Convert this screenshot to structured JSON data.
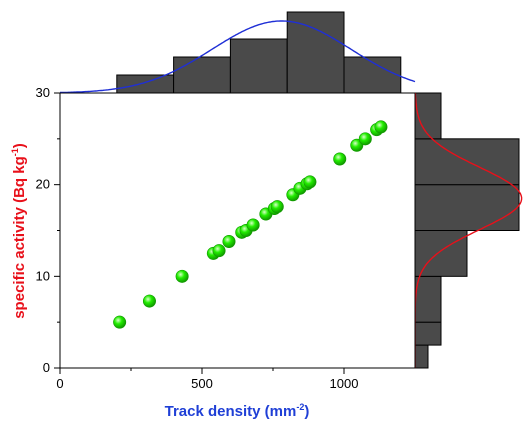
{
  "colors": {
    "point": "#22ee00",
    "point_highlight": "#d8ffc8",
    "point_edge": "#119900",
    "bar_fill": "#4a4a4a",
    "bar_edge": "#000000",
    "x_curve": "#1f2fd6",
    "y_curve": "#e8101a",
    "x_title": "#1f3fd6",
    "y_title": "#e8101a"
  },
  "chart_data": {
    "type": "scatter",
    "xlabel": {
      "main": "Track density (mm",
      "sup": "-2",
      "tail": ")"
    },
    "ylabel": {
      "main": "specific activity (Bq kg",
      "sup": "-1",
      "tail": ")"
    },
    "xlim": [
      0,
      1250
    ],
    "ylim": [
      0,
      30
    ],
    "xticks": [
      0,
      500,
      1000
    ],
    "xtick_labels": [
      "0",
      "500",
      "1000"
    ],
    "yticks": [
      0,
      10,
      20,
      30
    ],
    "ytick_labels": [
      "0",
      "10",
      "20",
      "30"
    ],
    "grid": false,
    "points": [
      [
        210,
        5.0
      ],
      [
        315,
        7.3
      ],
      [
        430,
        10.0
      ],
      [
        540,
        12.5
      ],
      [
        560,
        12.8
      ],
      [
        595,
        13.8
      ],
      [
        640,
        14.8
      ],
      [
        655,
        15.0
      ],
      [
        680,
        15.6
      ],
      [
        725,
        16.8
      ],
      [
        755,
        17.4
      ],
      [
        765,
        17.6
      ],
      [
        820,
        18.9
      ],
      [
        845,
        19.6
      ],
      [
        870,
        20.1
      ],
      [
        880,
        20.3
      ],
      [
        985,
        22.8
      ],
      [
        1045,
        24.3
      ],
      [
        1075,
        25.0
      ],
      [
        1115,
        26.0
      ],
      [
        1130,
        26.3
      ]
    ],
    "x_histogram": {
      "bins": [
        [
          200,
          400
        ],
        [
          400,
          600
        ],
        [
          600,
          800
        ],
        [
          800,
          1000
        ],
        [
          1000,
          1200
        ]
      ],
      "counts": [
        2,
        4,
        6,
        9,
        4
      ],
      "fit_curve": {
        "type": "normal",
        "mean": 780,
        "sd": 245,
        "peak": 8.0,
        "x_range": [
          0,
          1250
        ]
      }
    },
    "y_histogram": {
      "bins": [
        [
          0,
          2.5
        ],
        [
          2.5,
          5
        ],
        [
          5,
          10
        ],
        [
          10,
          15
        ],
        [
          15,
          20
        ],
        [
          20,
          25
        ],
        [
          25,
          30
        ]
      ],
      "counts": [
        1,
        2,
        2,
        4,
        8,
        8,
        2
      ],
      "fit_curve": {
        "type": "normal",
        "mean": 18.5,
        "sd": 3.4,
        "peak": 8.2,
        "y_range": [
          0,
          30
        ]
      }
    }
  }
}
